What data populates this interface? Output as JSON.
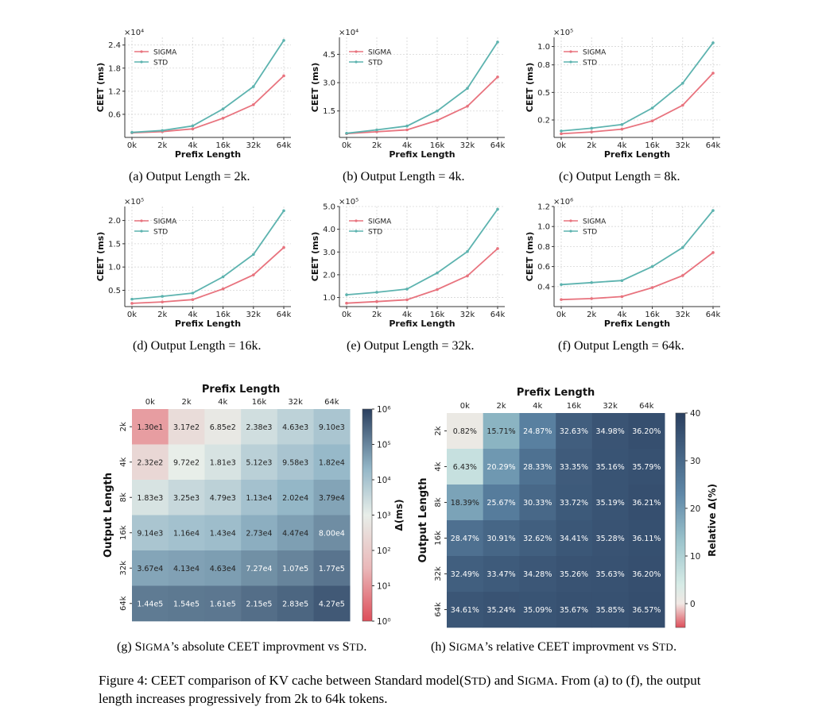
{
  "line_charts": {
    "x_label": "Prefix Length",
    "y_label": "CEET (ms)",
    "categories": [
      "0k",
      "2k",
      "4k",
      "16k",
      "32k",
      "64k"
    ],
    "series_names": [
      "SIGMA",
      "STD"
    ],
    "colors": {
      "SIGMA": "#e8737e",
      "STD": "#5db3af"
    }
  },
  "chart_data": [
    {
      "type": "line",
      "id": "a",
      "title": "(a) Output Length = 2k.",
      "xlabel": "Prefix Length",
      "ylabel": "CEET (ms)",
      "categories": [
        "0k",
        "2k",
        "4k",
        "16k",
        "32k",
        "64k"
      ],
      "scale_label": "×10⁴",
      "yticks": [
        0.6,
        1.2,
        1.8,
        2.4
      ],
      "ytick_labels": [
        "0.6",
        "1.2",
        "1.8",
        "2.4"
      ],
      "ylim": [
        0.0,
        2.6
      ],
      "series": [
        {
          "name": "SIGMA",
          "values": [
            0.12,
            0.15,
            0.22,
            0.5,
            0.85,
            1.6
          ]
        },
        {
          "name": "STD",
          "values": [
            0.13,
            0.18,
            0.3,
            0.74,
            1.32,
            2.52
          ]
        }
      ]
    },
    {
      "type": "line",
      "id": "b",
      "title": "(b) Output Length = 4k.",
      "xlabel": "Prefix Length",
      "ylabel": "CEET (ms)",
      "categories": [
        "0k",
        "2k",
        "4k",
        "16k",
        "32k",
        "64k"
      ],
      "scale_label": "×10⁴",
      "yticks": [
        1.5,
        3.0,
        4.5
      ],
      "ytick_labels": [
        "1.5",
        "3.0",
        "4.5"
      ],
      "ylim": [
        0.1,
        5.4
      ],
      "series": [
        {
          "name": "SIGMA",
          "values": [
            0.3,
            0.4,
            0.5,
            1.0,
            1.75,
            3.3
          ]
        },
        {
          "name": "STD",
          "values": [
            0.32,
            0.5,
            0.7,
            1.5,
            2.7,
            5.15
          ]
        }
      ]
    },
    {
      "type": "line",
      "id": "c",
      "title": "(c) Output Length = 8k.",
      "xlabel": "Prefix Length",
      "ylabel": "CEET (ms)",
      "categories": [
        "0k",
        "2k",
        "4k",
        "16k",
        "32k",
        "64k"
      ],
      "scale_label": "×10⁵",
      "yticks": [
        0.2,
        0.5,
        0.8,
        1.0
      ],
      "ytick_labels": [
        "0.2",
        "0.5",
        "0.8",
        "1.0"
      ],
      "ylim": [
        0.01,
        1.1
      ],
      "series": [
        {
          "name": "SIGMA",
          "values": [
            0.05,
            0.07,
            0.1,
            0.19,
            0.36,
            0.71
          ]
        },
        {
          "name": "STD",
          "values": [
            0.08,
            0.11,
            0.15,
            0.33,
            0.6,
            1.04
          ]
        }
      ]
    },
    {
      "type": "line",
      "id": "d",
      "title": "(d) Output Length = 16k.",
      "xlabel": "Prefix Length",
      "ylabel": "CEET (ms)",
      "categories": [
        "0k",
        "2k",
        "4k",
        "16k",
        "32k",
        "64k"
      ],
      "scale_label": "×10⁵",
      "yticks": [
        0.5,
        1.0,
        1.5,
        2.0
      ],
      "ytick_labels": [
        "0.5",
        "1.0",
        "1.5",
        "2.0"
      ],
      "ylim": [
        0.15,
        2.3
      ],
      "series": [
        {
          "name": "SIGMA",
          "values": [
            0.22,
            0.25,
            0.3,
            0.53,
            0.83,
            1.42
          ]
        },
        {
          "name": "STD",
          "values": [
            0.31,
            0.37,
            0.44,
            0.79,
            1.27,
            2.21
          ]
        }
      ]
    },
    {
      "type": "line",
      "id": "e",
      "title": "(e) Output Length = 32k.",
      "xlabel": "Prefix Length",
      "ylabel": "CEET (ms)",
      "categories": [
        "0k",
        "2k",
        "4k",
        "16k",
        "32k",
        "64k"
      ],
      "scale_label": "×10⁵",
      "yticks": [
        1.0,
        2.0,
        3.0,
        4.0,
        5.0
      ],
      "ytick_labels": [
        "1.0",
        "2.0",
        "3.0",
        "4.0",
        "5.0"
      ],
      "ylim": [
        0.6,
        5.0
      ],
      "series": [
        {
          "name": "SIGMA",
          "values": [
            0.75,
            0.82,
            0.9,
            1.35,
            1.95,
            3.15
          ]
        },
        {
          "name": "STD",
          "values": [
            1.12,
            1.23,
            1.37,
            2.08,
            3.02,
            4.88
          ]
        }
      ]
    },
    {
      "type": "line",
      "id": "f",
      "title": "(f) Output Length = 64k.",
      "xlabel": "Prefix Length",
      "ylabel": "CEET (ms)",
      "categories": [
        "0k",
        "2k",
        "4k",
        "16k",
        "32k",
        "64k"
      ],
      "scale_label": "×10⁶",
      "yticks": [
        0.4,
        0.6,
        0.8,
        1.0,
        1.2
      ],
      "ytick_labels": [
        "0.4",
        "0.6",
        "0.8",
        "1.0",
        "1.2"
      ],
      "ylim": [
        0.2,
        1.2
      ],
      "series": [
        {
          "name": "SIGMA",
          "values": [
            0.27,
            0.28,
            0.3,
            0.39,
            0.51,
            0.74
          ]
        },
        {
          "name": "STD",
          "values": [
            0.42,
            0.44,
            0.46,
            0.6,
            0.79,
            1.16
          ]
        }
      ]
    },
    {
      "type": "heatmap",
      "id": "g",
      "title": "Prefix Length",
      "xlabel": "Prefix Length",
      "ylabel": "Output Length",
      "x": [
        "0k",
        "2k",
        "4k",
        "16k",
        "32k",
        "64k"
      ],
      "y": [
        "2k",
        "4k",
        "8k",
        "16k",
        "32k",
        "64k"
      ],
      "labels": [
        [
          "1.30e1",
          "3.17e2",
          "6.85e2",
          "2.38e3",
          "4.63e3",
          "9.10e3"
        ],
        [
          "2.32e2",
          "9.72e2",
          "1.81e3",
          "5.12e3",
          "9.58e3",
          "1.82e4"
        ],
        [
          "1.83e3",
          "3.25e3",
          "4.79e3",
          "1.13e4",
          "2.02e4",
          "3.79e4"
        ],
        [
          "9.14e3",
          "1.16e4",
          "1.43e4",
          "2.73e4",
          "4.47e4",
          "8.00e4"
        ],
        [
          "3.67e4",
          "4.13e4",
          "4.63e4",
          "7.27e4",
          "1.07e5",
          "1.77e5"
        ],
        [
          "1.44e5",
          "1.54e5",
          "1.61e5",
          "2.15e5",
          "2.83e5",
          "4.27e5"
        ]
      ],
      "values": [
        [
          13,
          317,
          685,
          2380,
          4630,
          9100
        ],
        [
          232,
          972,
          1810,
          5120,
          9580,
          18200
        ],
        [
          1830,
          3250,
          4790,
          11300,
          20200,
          37900
        ],
        [
          9140,
          11600,
          14300,
          27300,
          44700,
          80000
        ],
        [
          36700,
          41300,
          46300,
          72700,
          107000,
          177000
        ],
        [
          144000,
          154000,
          161000,
          215000,
          283000,
          427000
        ]
      ],
      "colorbar": {
        "label": "Δ(ms)",
        "scale": "log",
        "ticks": [
          "10⁰",
          "10¹",
          "10²",
          "10³",
          "10⁴",
          "10⁵",
          "10⁶"
        ],
        "min": 1,
        "max": 1000000
      }
    },
    {
      "type": "heatmap",
      "id": "h",
      "title": "Prefix Length",
      "xlabel": "Prefix Length",
      "ylabel": "Output Length",
      "x": [
        "0k",
        "2k",
        "4k",
        "16k",
        "32k",
        "64k"
      ],
      "y": [
        "2k",
        "4k",
        "8k",
        "16k",
        "32k",
        "64k"
      ],
      "labels": [
        [
          "0.82%",
          "15.71%",
          "24.87%",
          "32.63%",
          "34.98%",
          "36.20%"
        ],
        [
          "6.43%",
          "20.29%",
          "28.33%",
          "33.35%",
          "35.16%",
          "35.79%"
        ],
        [
          "18.39%",
          "25.67%",
          "30.33%",
          "33.72%",
          "35.19%",
          "36.21%"
        ],
        [
          "28.47%",
          "30.91%",
          "32.62%",
          "34.41%",
          "35.28%",
          "36.11%"
        ],
        [
          "32.49%",
          "33.47%",
          "34.28%",
          "35.26%",
          "35.63%",
          "36.20%"
        ],
        [
          "34.61%",
          "35.24%",
          "35.09%",
          "35.67%",
          "35.85%",
          "36.57%"
        ]
      ],
      "values": [
        [
          0.82,
          15.71,
          24.87,
          32.63,
          34.98,
          36.2
        ],
        [
          6.43,
          20.29,
          28.33,
          33.35,
          35.16,
          35.79
        ],
        [
          18.39,
          25.67,
          30.33,
          33.72,
          35.19,
          36.21
        ],
        [
          28.47,
          30.91,
          32.62,
          34.41,
          35.28,
          36.11
        ],
        [
          32.49,
          33.47,
          34.28,
          35.26,
          35.63,
          36.2
        ],
        [
          34.61,
          35.24,
          35.09,
          35.67,
          35.85,
          36.57
        ]
      ],
      "colorbar": {
        "label": "Relative Δ(%)",
        "scale": "linear",
        "ticks": [
          "0",
          "10",
          "20",
          "30",
          "40"
        ],
        "min": -5,
        "max": 40
      }
    }
  ],
  "captions": {
    "a": "(a) Output Length = 2k.",
    "b": "(b) Output Length = 4k.",
    "c": "(c) Output Length = 8k.",
    "d": "(d) Output Length = 16k.",
    "e": "(e) Output Length = 32k.",
    "f": "(f) Output Length = 64k.",
    "g_pre": "(g) S",
    "g_sc1": "IGMA",
    "g_mid": "’s absolute CEET improvment vs S",
    "g_sc2": "TD",
    "g_end": ".",
    "h_pre": "(h) S",
    "h_sc1": "IGMA",
    "h_mid": "’s relative CEET improvment vs S",
    "h_sc2": "TD",
    "h_end": "."
  },
  "figure_caption": {
    "p1": "Figure 4: CEET comparison of KV cache between Standard model(S",
    "p1_sc": "TD",
    "p2": ") and S",
    "p2_sc": "IGMA",
    "p3": ". From (a) to (f), the output length increases progressively from 2k to 64k tokens."
  }
}
